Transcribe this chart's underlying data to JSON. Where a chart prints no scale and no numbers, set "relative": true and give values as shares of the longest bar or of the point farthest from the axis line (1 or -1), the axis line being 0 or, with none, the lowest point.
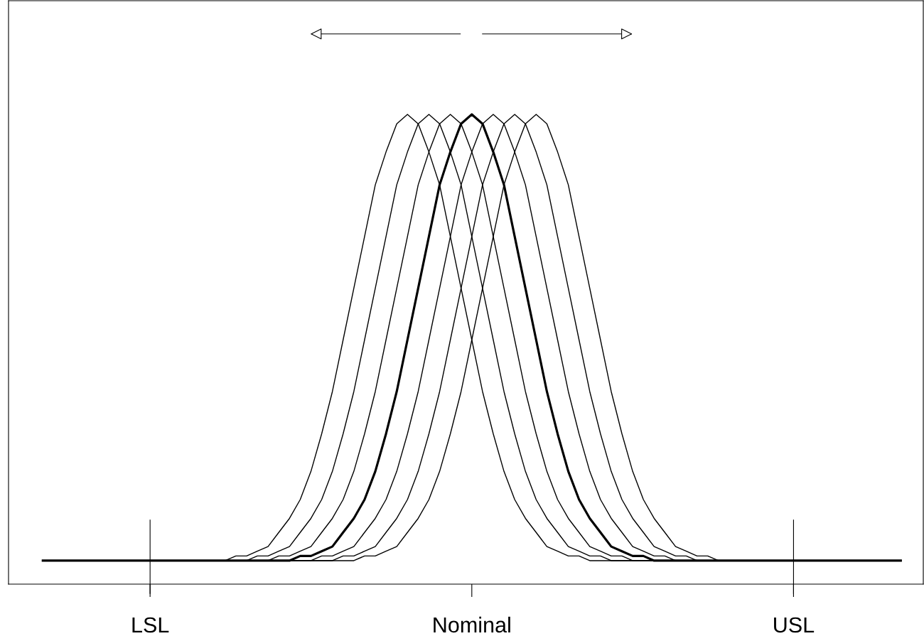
{
  "chart_data": {
    "type": "line",
    "relative": true,
    "categories": [
      null,
      null,
      null,
      null,
      null,
      null,
      null,
      null,
      null,
      null,
      "LSL",
      null,
      null,
      null,
      null,
      null,
      null,
      null,
      null,
      null,
      null,
      null,
      null,
      null,
      null,
      null,
      null,
      null,
      null,
      null,
      null,
      null,
      null,
      null,
      null,
      null,
      null,
      null,
      null,
      null,
      "Nominal",
      null,
      null,
      null,
      null,
      null,
      null,
      null,
      null,
      null,
      null,
      null,
      null,
      null,
      null,
      null,
      null,
      null,
      null,
      null,
      null,
      null,
      null,
      null,
      null,
      null,
      null,
      null,
      null,
      null,
      "USL",
      null,
      null,
      null,
      null,
      null,
      null,
      null,
      null,
      null,
      null
    ],
    "tick_labels": "x",
    "grid": false,
    "legend": false,
    "marker": "none",
    "line_style": "solid",
    "ref_lines": [
      {
        "axis": "x",
        "value": "LSL",
        "color": "#000000"
      },
      {
        "axis": "x",
        "value": "USL",
        "color": "#000000"
      }
    ],
    "series": [
      {
        "color": "#000000",
        "values": [
          0.05,
          0.05,
          0.05,
          0.05,
          0.05,
          0.05,
          0.05,
          0.05,
          0.05,
          0.05,
          0.05,
          0.05,
          0.05,
          0.05,
          0.05,
          0.05,
          0.05,
          0.05,
          0.06,
          0.06,
          0.07,
          0.08,
          0.11,
          0.14,
          0.18,
          0.24,
          0.32,
          0.41,
          0.52,
          0.63,
          0.74,
          0.85,
          0.92,
          0.98,
          1,
          0.98,
          0.92,
          0.85,
          0.74,
          0.63,
          0.52,
          0.41,
          0.32,
          0.24,
          0.18,
          0.14,
          0.11,
          0.08,
          0.07,
          0.06,
          0.06,
          0.05,
          0.05,
          0.05,
          0.05,
          0.05,
          0.05,
          0.05,
          0.05,
          0.05,
          0.05,
          0.05,
          0.05,
          0.05,
          0.05,
          0.05,
          0.05,
          0.05,
          0.05,
          0.05,
          0.05,
          0.05,
          0.05,
          0.05,
          0.05,
          0.05,
          0.05,
          0.05,
          0.05,
          0.05,
          0.05
        ]
      },
      {
        "color": "#000000",
        "values": [
          0.05,
          0.05,
          0.05,
          0.05,
          0.05,
          0.05,
          0.05,
          0.05,
          0.05,
          0.05,
          0.05,
          0.05,
          0.05,
          0.05,
          0.05,
          0.05,
          0.05,
          0.05,
          0.05,
          0.05,
          0.06,
          0.06,
          0.07,
          0.08,
          0.11,
          0.14,
          0.18,
          0.24,
          0.32,
          0.41,
          0.52,
          0.63,
          0.74,
          0.85,
          0.92,
          0.98,
          1,
          0.98,
          0.92,
          0.85,
          0.74,
          0.63,
          0.52,
          0.41,
          0.32,
          0.24,
          0.18,
          0.14,
          0.11,
          0.08,
          0.07,
          0.06,
          0.06,
          0.05,
          0.05,
          0.05,
          0.05,
          0.05,
          0.05,
          0.05,
          0.05,
          0.05,
          0.05,
          0.05,
          0.05,
          0.05,
          0.05,
          0.05,
          0.05,
          0.05,
          0.05,
          0.05,
          0.05,
          0.05,
          0.05,
          0.05,
          0.05,
          0.05,
          0.05,
          0.05,
          0.05
        ]
      },
      {
        "color": "#000000",
        "values": [
          0.05,
          0.05,
          0.05,
          0.05,
          0.05,
          0.05,
          0.05,
          0.05,
          0.05,
          0.05,
          0.05,
          0.05,
          0.05,
          0.05,
          0.05,
          0.05,
          0.05,
          0.05,
          0.05,
          0.05,
          0.05,
          0.05,
          0.06,
          0.06,
          0.07,
          0.08,
          0.11,
          0.14,
          0.18,
          0.24,
          0.32,
          0.41,
          0.52,
          0.63,
          0.74,
          0.85,
          0.92,
          0.98,
          1,
          0.98,
          0.92,
          0.85,
          0.74,
          0.63,
          0.52,
          0.41,
          0.32,
          0.24,
          0.18,
          0.14,
          0.11,
          0.08,
          0.07,
          0.06,
          0.06,
          0.05,
          0.05,
          0.05,
          0.05,
          0.05,
          0.05,
          0.05,
          0.05,
          0.05,
          0.05,
          0.05,
          0.05,
          0.05,
          0.05,
          0.05,
          0.05,
          0.05,
          0.05,
          0.05,
          0.05,
          0.05,
          0.05,
          0.05,
          0.05,
          0.05,
          0.05
        ]
      },
      {
        "color": "#000000",
        "values": [
          0.05,
          0.05,
          0.05,
          0.05,
          0.05,
          0.05,
          0.05,
          0.05,
          0.05,
          0.05,
          0.05,
          0.05,
          0.05,
          0.05,
          0.05,
          0.05,
          0.05,
          0.05,
          0.05,
          0.05,
          0.05,
          0.05,
          0.05,
          0.05,
          0.06,
          0.06,
          0.07,
          0.08,
          0.11,
          0.14,
          0.18,
          0.24,
          0.32,
          0.41,
          0.52,
          0.63,
          0.74,
          0.85,
          0.92,
          0.98,
          1,
          0.98,
          0.92,
          0.85,
          0.74,
          0.63,
          0.52,
          0.41,
          0.32,
          0.24,
          0.18,
          0.14,
          0.11,
          0.08,
          0.07,
          0.06,
          0.06,
          0.05,
          0.05,
          0.05,
          0.05,
          0.05,
          0.05,
          0.05,
          0.05,
          0.05,
          0.05,
          0.05,
          0.05,
          0.05,
          0.05,
          0.05,
          0.05,
          0.05,
          0.05,
          0.05,
          0.05,
          0.05,
          0.05,
          0.05,
          0.05
        ]
      },
      {
        "color": "#000000",
        "values": [
          0.05,
          0.05,
          0.05,
          0.05,
          0.05,
          0.05,
          0.05,
          0.05,
          0.05,
          0.05,
          0.05,
          0.05,
          0.05,
          0.05,
          0.05,
          0.05,
          0.05,
          0.05,
          0.05,
          0.05,
          0.05,
          0.05,
          0.05,
          0.05,
          0.05,
          0.05,
          0.06,
          0.06,
          0.07,
          0.08,
          0.11,
          0.14,
          0.18,
          0.24,
          0.32,
          0.41,
          0.52,
          0.63,
          0.74,
          0.85,
          0.92,
          0.98,
          1,
          0.98,
          0.92,
          0.85,
          0.74,
          0.63,
          0.52,
          0.41,
          0.32,
          0.24,
          0.18,
          0.14,
          0.11,
          0.08,
          0.07,
          0.06,
          0.06,
          0.05,
          0.05,
          0.05,
          0.05,
          0.05,
          0.05,
          0.05,
          0.05,
          0.05,
          0.05,
          0.05,
          0.05,
          0.05,
          0.05,
          0.05,
          0.05,
          0.05,
          0.05,
          0.05,
          0.05,
          0.05,
          0.05
        ]
      },
      {
        "color": "#000000",
        "values": [
          0.05,
          0.05,
          0.05,
          0.05,
          0.05,
          0.05,
          0.05,
          0.05,
          0.05,
          0.05,
          0.05,
          0.05,
          0.05,
          0.05,
          0.05,
          0.05,
          0.05,
          0.05,
          0.05,
          0.05,
          0.05,
          0.05,
          0.05,
          0.05,
          0.05,
          0.05,
          0.05,
          0.05,
          0.06,
          0.06,
          0.07,
          0.08,
          0.11,
          0.14,
          0.18,
          0.24,
          0.32,
          0.41,
          0.52,
          0.63,
          0.74,
          0.85,
          0.92,
          0.98,
          1,
          0.98,
          0.92,
          0.85,
          0.74,
          0.63,
          0.52,
          0.41,
          0.32,
          0.24,
          0.18,
          0.14,
          0.11,
          0.08,
          0.07,
          0.06,
          0.06,
          0.05,
          0.05,
          0.05,
          0.05,
          0.05,
          0.05,
          0.05,
          0.05,
          0.05,
          0.05,
          0.05,
          0.05,
          0.05,
          0.05,
          0.05,
          0.05,
          0.05,
          0.05,
          0.05,
          0.05
        ]
      },
      {
        "color": "#000000",
        "values": [
          0.05,
          0.05,
          0.05,
          0.05,
          0.05,
          0.05,
          0.05,
          0.05,
          0.05,
          0.05,
          0.05,
          0.05,
          0.05,
          0.05,
          0.05,
          0.05,
          0.05,
          0.05,
          0.05,
          0.05,
          0.05,
          0.05,
          0.05,
          0.05,
          0.05,
          0.05,
          0.05,
          0.05,
          0.05,
          0.05,
          0.06,
          0.06,
          0.07,
          0.08,
          0.11,
          0.14,
          0.18,
          0.24,
          0.32,
          0.41,
          0.52,
          0.63,
          0.74,
          0.85,
          0.92,
          0.98,
          1,
          0.98,
          0.92,
          0.85,
          0.74,
          0.63,
          0.52,
          0.41,
          0.32,
          0.24,
          0.18,
          0.14,
          0.11,
          0.08,
          0.07,
          0.06,
          0.06,
          0.05,
          0.05,
          0.05,
          0.05,
          0.05,
          0.05,
          0.05,
          0.05,
          0.05,
          0.05,
          0.05,
          0.05,
          0.05,
          0.05,
          0.05,
          0.05,
          0.05,
          0.05
        ]
      }
    ]
  }
}
